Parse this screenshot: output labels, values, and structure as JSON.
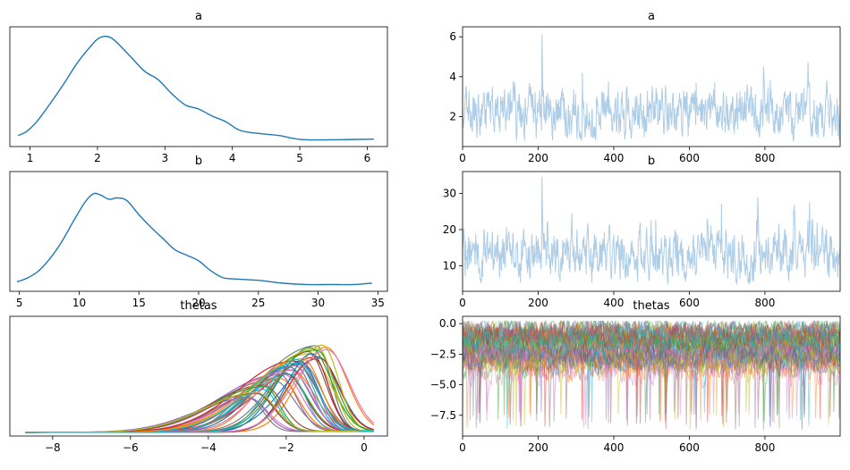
{
  "chart_data": [
    {
      "type": "area",
      "kind": "kde",
      "title": "a",
      "xlim": [
        0.7,
        6.3
      ],
      "xticks": [
        1,
        2,
        3,
        4,
        5,
        6
      ],
      "yticks_visible": false,
      "color": "#1f77b4",
      "x": [
        0.82,
        0.95,
        1.1,
        1.3,
        1.5,
        1.7,
        1.9,
        2.0,
        2.1,
        2.2,
        2.3,
        2.5,
        2.7,
        2.9,
        3.1,
        3.3,
        3.5,
        3.7,
        3.9,
        4.1,
        4.3,
        4.5,
        4.7,
        4.9,
        5.1,
        5.5,
        6.1
      ],
      "y": [
        0.04,
        0.07,
        0.14,
        0.27,
        0.41,
        0.56,
        0.68,
        0.73,
        0.75,
        0.74,
        0.7,
        0.6,
        0.5,
        0.44,
        0.34,
        0.26,
        0.23,
        0.18,
        0.14,
        0.08,
        0.06,
        0.05,
        0.04,
        0.02,
        0.01,
        0.01,
        0.015
      ]
    },
    {
      "type": "line",
      "kind": "trace",
      "title": "a",
      "xlim": [
        0,
        999
      ],
      "ylim": [
        0.5,
        6.5
      ],
      "xticks": [
        0,
        200,
        400,
        600,
        800
      ],
      "yticks": [
        2,
        4,
        6
      ],
      "color": "#aecde6",
      "n_draws": 1000,
      "ymin": 0.8,
      "ymax": 6.1,
      "typical": 2.2,
      "spike_at": 210
    },
    {
      "type": "area",
      "kind": "kde",
      "title": "b",
      "xlim": [
        4.2,
        35.8
      ],
      "xticks": [
        5,
        10,
        15,
        20,
        25,
        30,
        35
      ],
      "yticks_visible": false,
      "color": "#1f77b4",
      "x": [
        4.8,
        5.5,
        6.5,
        7.5,
        8.5,
        9.5,
        10.5,
        11.2,
        11.8,
        12.5,
        13.2,
        14.0,
        15.0,
        16.0,
        17.0,
        18.0,
        19.0,
        20.0,
        21.0,
        22.0,
        23.0,
        25.0,
        27.0,
        29.0,
        31.0,
        33.0,
        34.5
      ],
      "y": [
        0.03,
        0.05,
        0.1,
        0.19,
        0.31,
        0.46,
        0.6,
        0.66,
        0.65,
        0.62,
        0.63,
        0.61,
        0.51,
        0.42,
        0.34,
        0.26,
        0.22,
        0.18,
        0.11,
        0.06,
        0.05,
        0.04,
        0.02,
        0.01,
        0.01,
        0.01,
        0.02
      ]
    },
    {
      "type": "line",
      "kind": "trace",
      "title": "b",
      "xlim": [
        0,
        999
      ],
      "ylim": [
        3,
        36
      ],
      "xticks": [
        0,
        200,
        400,
        600,
        800
      ],
      "yticks": [
        10,
        20,
        30
      ],
      "color": "#aecde6",
      "n_draws": 1000,
      "ymin": 5,
      "ymax": 34.5,
      "typical": 13,
      "spike_at": 210
    },
    {
      "type": "area",
      "kind": "kde-multi",
      "title": "thetas",
      "xlim": [
        -9.1,
        0.6
      ],
      "xticks": [
        -8,
        -6,
        -4,
        -2,
        0
      ],
      "xtick_labels": [
        "−8",
        "−6",
        "−4",
        "−2",
        "0"
      ],
      "yticks_visible": false,
      "palette": [
        "#1f77b4",
        "#ff7f0e",
        "#2ca02c",
        "#d62728",
        "#9467bd",
        "#8c564b",
        "#e377c2",
        "#7f7f7f",
        "#bcbd22",
        "#17becf"
      ],
      "n_series": 40,
      "x_range": [
        -8.7,
        0.25
      ],
      "mode_range": [
        -3.0,
        -0.9
      ],
      "peak_range": [
        0.3,
        0.88
      ]
    },
    {
      "type": "line",
      "kind": "trace-multi",
      "title": "thetas",
      "xlim": [
        0,
        999
      ],
      "ylim": [
        -9.2,
        0.6
      ],
      "xticks": [
        0,
        200,
        400,
        600,
        800
      ],
      "yticks": [
        0.0,
        -2.5,
        -5.0,
        -7.5
      ],
      "ytick_labels": [
        "0.0",
        "−2.5",
        "−5.0",
        "−7.5"
      ],
      "palette": [
        "#1f77b4",
        "#ff7f0e",
        "#2ca02c",
        "#d62728",
        "#9467bd",
        "#8c564b",
        "#e377c2",
        "#7f7f7f",
        "#bcbd22",
        "#17becf"
      ],
      "n_series": 40,
      "n_draws": 1000,
      "band": [
        -4.0,
        -0.5
      ],
      "ymin": -8.7,
      "ymax": 0.2
    }
  ]
}
